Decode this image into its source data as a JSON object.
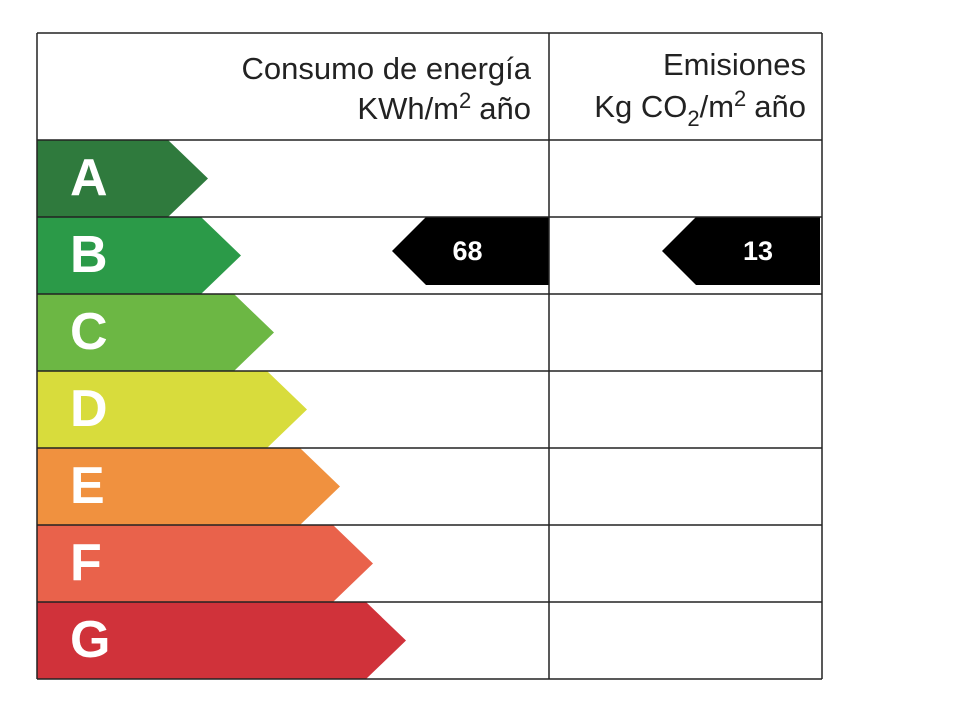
{
  "header": {
    "energy_title": "Consumo de energía",
    "energy_unit": [
      "KWh/m",
      "2",
      "año"
    ],
    "emissions_title": "Emisiones",
    "emissions_unit": [
      "Kg CO",
      "2",
      "/m",
      "2",
      "año"
    ]
  },
  "rows": [
    {
      "letter": "A",
      "color": "#2f7a3d"
    },
    {
      "letter": "B",
      "color": "#2b9a48"
    },
    {
      "letter": "C",
      "color": "#6cb744"
    },
    {
      "letter": "D",
      "color": "#d8dc3c"
    },
    {
      "letter": "E",
      "color": "#f0913f"
    },
    {
      "letter": "F",
      "color": "#e9624b"
    },
    {
      "letter": "G",
      "color": "#d0323a"
    }
  ],
  "rating": {
    "energy": {
      "letter": "B",
      "value": "68"
    },
    "emissions": {
      "letter": "B",
      "value": "13"
    }
  }
}
